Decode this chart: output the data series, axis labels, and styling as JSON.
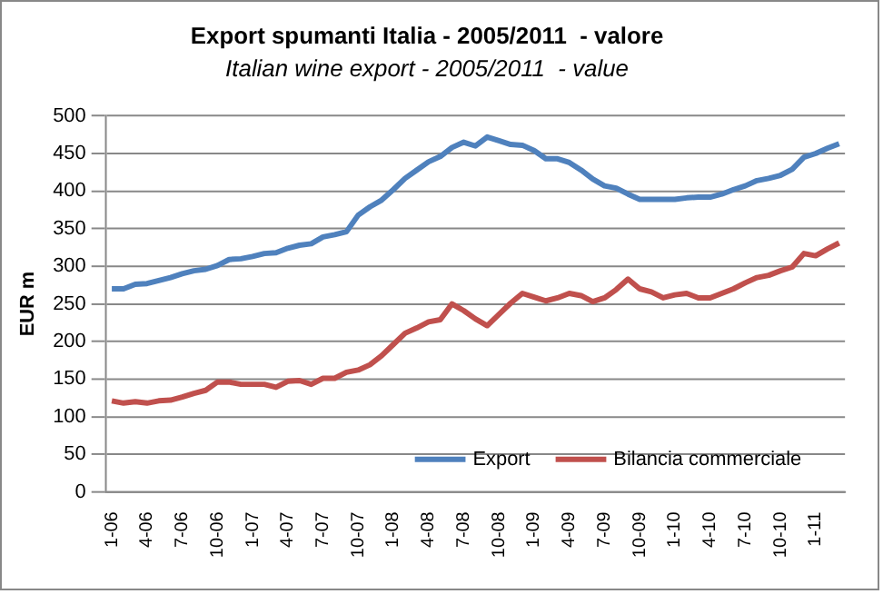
{
  "chart_data": {
    "type": "line",
    "title": "Export spumanti Italia - 2005/2011  - valore",
    "subtitle": "Italian wine export - 2005/2011  - value",
    "ylabel": "EUR m",
    "categories": [
      "1-06",
      null,
      null,
      "4-06",
      null,
      null,
      "7-06",
      null,
      null,
      "10-06",
      null,
      null,
      "1-07",
      null,
      null,
      "4-07",
      null,
      null,
      "7-07",
      null,
      null,
      "10-07",
      null,
      null,
      "1-08",
      null,
      null,
      "4-08",
      null,
      null,
      "7-08",
      null,
      null,
      "10-08",
      null,
      null,
      "1-09",
      null,
      null,
      "4-09",
      null,
      null,
      "7-09",
      null,
      null,
      "10-09",
      null,
      null,
      "1-10",
      null,
      null,
      "4-10",
      null,
      null,
      "7-10",
      null,
      null,
      "10-10",
      null,
      null,
      "1-11",
      null,
      null
    ],
    "series": [
      {
        "name": "Export",
        "color": "#4f81bd",
        "values": [
          270,
          270,
          276,
          277,
          281,
          285,
          290,
          294,
          296,
          301,
          309,
          310,
          313,
          317,
          318,
          324,
          328,
          330,
          339,
          342,
          346,
          368,
          379,
          388,
          402,
          417,
          428,
          439,
          446,
          458,
          465,
          460,
          472,
          467,
          462,
          461,
          454,
          443,
          443,
          438,
          428,
          416,
          407,
          404,
          396,
          389,
          389,
          389,
          389,
          391,
          392,
          392,
          396,
          402,
          407,
          414,
          417,
          421,
          429,
          445,
          450,
          457,
          463
        ]
      },
      {
        "name": "Bilancia commerciale",
        "color": "#c0504d",
        "values": [
          121,
          118,
          120,
          118,
          121,
          122,
          126,
          131,
          135,
          146,
          146,
          143,
          143,
          143,
          139,
          147,
          148,
          143,
          151,
          151,
          159,
          162,
          169,
          181,
          196,
          211,
          218,
          226,
          229,
          250,
          241,
          230,
          221,
          236,
          251,
          264,
          259,
          254,
          258,
          264,
          261,
          253,
          258,
          269,
          283,
          270,
          266,
          258,
          262,
          264,
          258,
          258,
          264,
          270,
          278,
          285,
          288,
          294,
          299,
          317,
          314,
          323,
          331
        ]
      }
    ],
    "ylim": [
      0,
      500
    ],
    "yticks": [
      0,
      50,
      100,
      150,
      200,
      250,
      300,
      350,
      400,
      450,
      500
    ],
    "grid": "y",
    "legend": "bottom right",
    "marker": "none",
    "line_style": "solid"
  }
}
